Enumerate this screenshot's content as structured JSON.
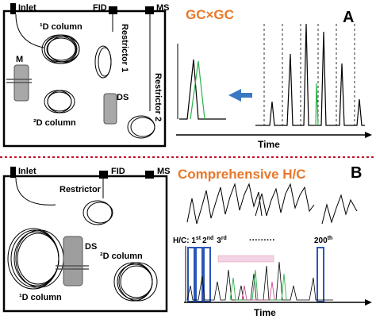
{
  "top": {
    "inlet": "Inlet",
    "fid": "FID",
    "ms": "MS",
    "column_1d": "¹D column",
    "modulator": "M",
    "restrictor_1": "Restrictor 1",
    "restrictor_2": "Restrictor 2",
    "ds": "DS",
    "column_2d": "²D column",
    "title": "GC×GC",
    "panel": "A",
    "time": "Time"
  },
  "bottom": {
    "inlet": "Inlet",
    "fid": "FID",
    "ms": "MS",
    "restrictor": "Restrictor",
    "ds": "DS",
    "column_2d": "²D column",
    "column_1d": "¹D column",
    "title": "Comprehensive H/C",
    "panel": "B",
    "hc_prefix": "H/C: 1",
    "sup_st": "st",
    "second": "2",
    "sup_nd": "nd",
    "third": "3",
    "sup_rd": "rd",
    "dots": "·········",
    "nth": "200",
    "sup_th": "th",
    "time": "Time"
  },
  "colors": {
    "accent": "#e8782a",
    "divider": "#c8102e",
    "green": "#2db34a",
    "arrow": "#3a78c3",
    "blue_box": "#2a56b8"
  }
}
